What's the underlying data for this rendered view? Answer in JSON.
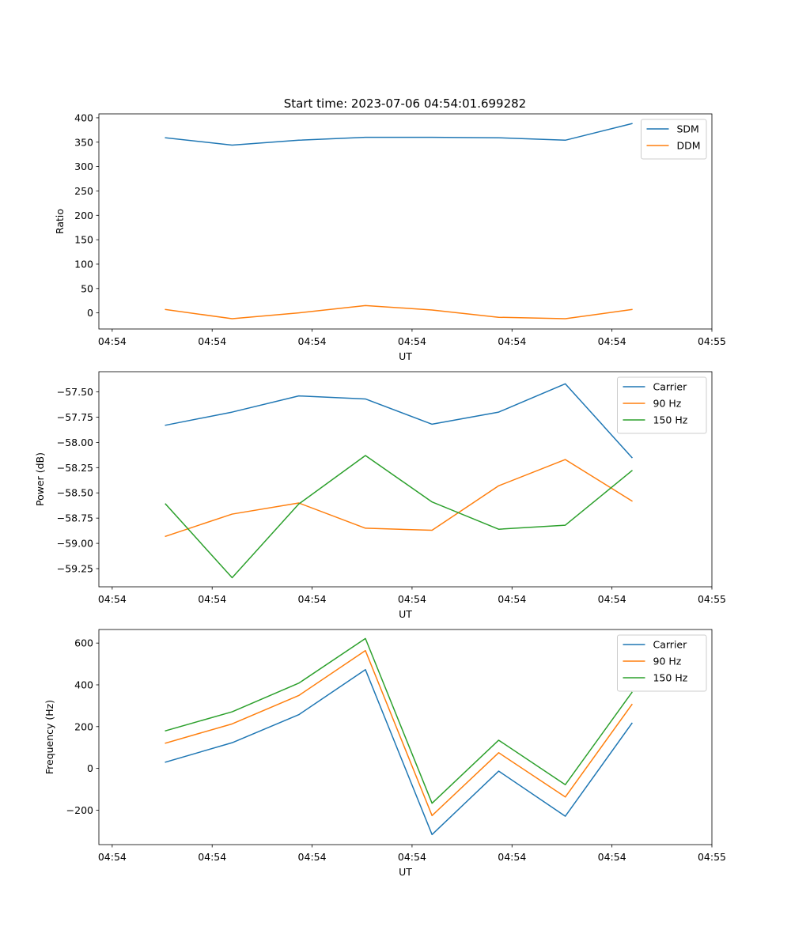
{
  "figure_title": "Start time: 2023-07-06 04:54:01.699282",
  "colors": {
    "blue": "#1f77b4",
    "orange": "#ff7f0e",
    "green": "#2ca02c"
  },
  "chart_data": [
    {
      "type": "line",
      "title": "Start time: 2023-07-06 04:54:01.699282",
      "xlabel": "UT",
      "ylabel": "Ratio",
      "x": [
        1,
        2,
        3,
        4,
        5,
        6,
        7,
        8
      ],
      "xlim": [
        0,
        9.2
      ],
      "xticks": [
        0.2,
        1.7,
        3.2,
        4.7,
        6.2,
        7.7,
        9.2
      ],
      "xtick_labels": [
        "04:54",
        "04:54",
        "04:54",
        "04:54",
        "04:54",
        "04:54",
        "04:55"
      ],
      "ylim": [
        -33,
        408
      ],
      "yticks": [
        0,
        50,
        100,
        150,
        200,
        250,
        300,
        350,
        400
      ],
      "ytick_labels": [
        "0",
        "50",
        "100",
        "150",
        "200",
        "250",
        "300",
        "350",
        "400"
      ],
      "legend_position": "top-right",
      "series": [
        {
          "name": "SDM",
          "color": "#1f77b4",
          "values": [
            359,
            344,
            354,
            360,
            360,
            359,
            354,
            388
          ]
        },
        {
          "name": "DDM",
          "color": "#ff7f0e",
          "values": [
            7,
            -12,
            0,
            15,
            6,
            -9,
            -12,
            7
          ]
        }
      ]
    },
    {
      "type": "line",
      "title": "",
      "xlabel": "UT",
      "ylabel": "Power (dB)",
      "x": [
        1,
        2,
        3,
        4,
        5,
        6,
        7,
        8
      ],
      "xlim": [
        0,
        9.2
      ],
      "xticks": [
        0.2,
        1.7,
        3.2,
        4.7,
        6.2,
        7.7,
        9.2
      ],
      "xtick_labels": [
        "04:54",
        "04:54",
        "04:54",
        "04:54",
        "04:54",
        "04:54",
        "04:55"
      ],
      "ylim": [
        -59.43,
        -57.3
      ],
      "yticks": [
        -59.25,
        -59.0,
        -58.75,
        -58.5,
        -58.25,
        -58.0,
        -57.75,
        -57.5
      ],
      "ytick_labels": [
        "−59.25",
        "−59.00",
        "−58.75",
        "−58.50",
        "−58.25",
        "−58.00",
        "−57.75",
        "−57.50"
      ],
      "legend_position": "top-right",
      "series": [
        {
          "name": "Carrier",
          "color": "#1f77b4",
          "values": [
            -57.83,
            -57.7,
            -57.54,
            -57.57,
            -57.82,
            -57.7,
            -57.42,
            -58.15
          ]
        },
        {
          "name": "90 Hz",
          "color": "#ff7f0e",
          "values": [
            -58.93,
            -58.71,
            -58.6,
            -58.85,
            -58.87,
            -58.43,
            -58.17,
            -58.58
          ]
        },
        {
          "name": "150 Hz",
          "color": "#2ca02c",
          "values": [
            -58.61,
            -59.34,
            -58.61,
            -58.13,
            -58.59,
            -58.86,
            -58.82,
            -58.28
          ]
        }
      ]
    },
    {
      "type": "line",
      "title": "",
      "xlabel": "UT",
      "ylabel": "Frequency (Hz)",
      "x": [
        1,
        2,
        3,
        4,
        5,
        6,
        7,
        8
      ],
      "xlim": [
        0,
        9.2
      ],
      "xticks": [
        0.2,
        1.7,
        3.2,
        4.7,
        6.2,
        7.7,
        9.2
      ],
      "xtick_labels": [
        "04:54",
        "04:54",
        "04:54",
        "04:54",
        "04:54",
        "04:54",
        "04:55"
      ],
      "ylim": [
        -365,
        665
      ],
      "yticks": [
        -200,
        0,
        200,
        400,
        600
      ],
      "ytick_labels": [
        "−200",
        "0",
        "200",
        "400",
        "600"
      ],
      "legend_position": "top-right",
      "series": [
        {
          "name": "Carrier",
          "color": "#1f77b4",
          "values": [
            30,
            123,
            257,
            473,
            -317,
            -13,
            -229,
            216
          ]
        },
        {
          "name": "90 Hz",
          "color": "#ff7f0e",
          "values": [
            121,
            213,
            349,
            564,
            -226,
            75,
            -137,
            306
          ]
        },
        {
          "name": "150 Hz",
          "color": "#2ca02c",
          "values": [
            180,
            271,
            408,
            622,
            -167,
            135,
            -78,
            364
          ]
        }
      ]
    }
  ]
}
